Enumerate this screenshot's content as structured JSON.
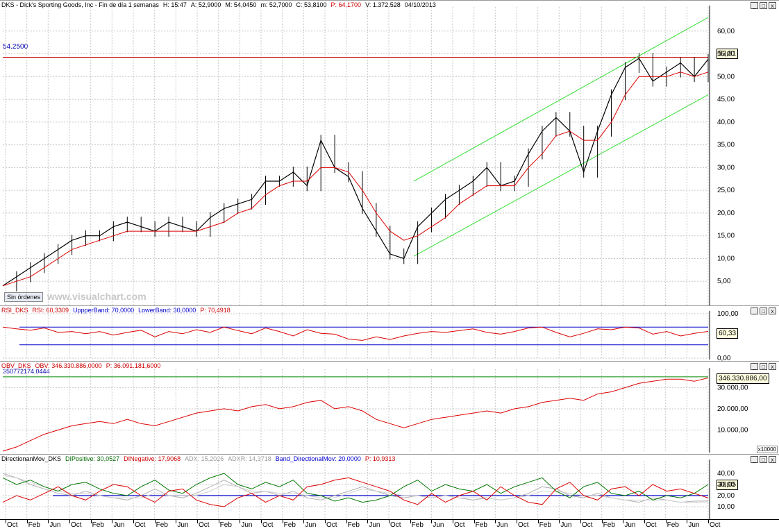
{
  "window_buttons": [
    "_",
    "□",
    "x"
  ],
  "price_panel": {
    "header": [
      {
        "text": "DKS - Dick's Sporting Goods, Inc - Fin de día 1 semanas",
        "color": "#000000"
      },
      {
        "text": "H: 15:47",
        "color": "#000000"
      },
      {
        "text": "A: 52,9000",
        "color": "#000000"
      },
      {
        "text": "M: 54,0450",
        "color": "#000000"
      },
      {
        "text": "m: 52,7000",
        "color": "#000000"
      },
      {
        "text": "C: 53,8100",
        "color": "#000000"
      },
      {
        "text": "P: 64,1700",
        "color": "#cc0000"
      },
      {
        "text": "V: 1.372.528",
        "color": "#000000"
      },
      {
        "text": "04/10/2013",
        "color": "#000000"
      }
    ],
    "resistance_label": "54.2500",
    "last_value": "53,81",
    "orders_button": "Sin órdenes",
    "watermark": "www.visualchart.com",
    "y_ticks": [
      "60,00",
      "55,00",
      "50,00",
      "45,00",
      "40,00",
      "35,00",
      "30,00",
      "25,00",
      "20,00",
      "15,00",
      "10,00",
      "5,00"
    ]
  },
  "rsi_panel": {
    "header": [
      {
        "text": "RSI_DKS",
        "color": "#cc0000"
      },
      {
        "text": "RSI: 60,3309",
        "color": "#cc0000"
      },
      {
        "text": "UppperBand: 70,0000",
        "color": "#0000cc"
      },
      {
        "text": "LowerBand: 30,0000",
        "color": "#0000cc"
      },
      {
        "text": "P: 70,4918",
        "color": "#cc0000"
      }
    ],
    "last_value": "60,33",
    "y_ticks": [
      "100,00",
      "0,00"
    ]
  },
  "obv_panel": {
    "header": [
      {
        "text": "OBV_DKS",
        "color": "#cc0000"
      },
      {
        "text": "OBV: 346.330.886,0000",
        "color": "#cc0000"
      },
      {
        "text": "P: 36.091.181,6000",
        "color": "#cc0000"
      }
    ],
    "sub_label": "350772174.0444",
    "last_value": "346.330.886,00",
    "y_ticks": [
      "30.000,00",
      "20.000,00",
      "10.000,00"
    ],
    "multiplier": "x10000"
  },
  "dmi_panel": {
    "header": [
      {
        "text": "DirectionanMov_DKS",
        "color": "#000000"
      },
      {
        "text": "DIPositive: 30,0527",
        "color": "#006600"
      },
      {
        "text": "DINegative: 17,9068",
        "color": "#cc0000"
      },
      {
        "text": "ADX: 15,2026",
        "color": "#999999"
      },
      {
        "text": "ADXR: 14,3718",
        "color": "#999999"
      },
      {
        "text": "Band_DirectionalMov: 20,0000",
        "color": "#0000cc"
      },
      {
        "text": "P: 10,9313",
        "color": "#cc0000"
      }
    ],
    "last_value": "30,05",
    "y_ticks": [
      "40,00",
      "30,00",
      "20,00",
      "10,00"
    ]
  },
  "x_axis_labels": [
    "Oct",
    "Feb",
    "Jun",
    "Oct",
    "Feb",
    "Jun",
    "Oct",
    "Feb",
    "Jun",
    "Oct",
    "Feb",
    "Jun",
    "Oct",
    "Feb",
    "Jun",
    "Oct",
    "Feb",
    "Jun",
    "Oct",
    "Feb",
    "Jun",
    "Oct",
    "Feb",
    "Jun",
    "Oct",
    "Feb",
    "Jun",
    "Oct",
    "Feb",
    "Jun",
    "Oct",
    "Feb",
    "Jun",
    "Oct"
  ],
  "chart_data": [
    {
      "type": "line",
      "title": "DKS - Dick's Sporting Goods, Inc - Fin de día 1 semanas",
      "ylim": [
        0,
        65
      ],
      "series": [
        {
          "values": [
            4,
            6,
            8,
            10,
            12,
            14,
            15,
            15,
            17,
            18,
            17,
            16,
            18,
            17,
            16,
            19,
            21,
            22,
            23,
            27,
            27,
            29,
            26,
            36,
            30,
            28,
            21,
            16,
            11,
            10,
            17,
            20,
            23,
            25,
            27,
            30,
            26,
            27,
            33,
            38,
            41,
            38,
            29,
            38,
            46,
            52,
            54,
            49,
            51,
            53,
            50,
            53.8
          ]
        },
        {
          "values": [
            4,
            5,
            6,
            8,
            10,
            12,
            13,
            14,
            15,
            16,
            16,
            16,
            16,
            16,
            16,
            17,
            18,
            20,
            21,
            24,
            26,
            27,
            27,
            30,
            30,
            29,
            25,
            20,
            16,
            14,
            15,
            17,
            19,
            22,
            24,
            26,
            26,
            26,
            30,
            33,
            37,
            38,
            36,
            36,
            40,
            46,
            50,
            50,
            50,
            51,
            50,
            51
          ]
        }
      ],
      "resistance": 54.25
    },
    {
      "type": "line",
      "title": "RSI_DKS",
      "ylim": [
        0,
        100
      ],
      "series": [
        {
          "name": "RSI_DKS",
          "values": [
            70,
            66,
            63,
            68,
            58,
            60,
            55,
            60,
            52,
            58,
            63,
            48,
            60,
            55,
            64,
            58,
            70,
            62,
            55,
            68,
            60,
            50,
            64,
            56,
            54,
            43,
            40,
            48,
            42,
            50,
            56,
            60,
            58,
            62,
            66,
            58,
            54,
            60,
            68,
            70,
            58,
            48,
            56,
            66,
            64,
            70,
            68,
            54,
            60,
            50,
            56,
            60.3
          ]
        }
      ],
      "bands": {
        "upper": 70,
        "lower": 30
      }
    },
    {
      "type": "line",
      "title": "OBV_DKS",
      "series": [
        {
          "name": "OBV_DKS",
          "values": [
            0,
            2,
            5,
            8,
            10,
            12,
            13,
            14,
            13,
            15,
            13,
            12,
            14,
            16,
            18,
            19,
            20,
            19,
            21,
            22,
            20,
            21,
            23,
            24,
            20,
            21,
            19,
            15,
            13,
            11,
            13,
            15,
            16,
            17,
            18,
            19,
            18,
            20,
            21,
            23,
            24,
            25,
            24,
            27,
            28,
            30,
            32,
            33,
            34,
            34,
            33,
            34.6
          ]
        }
      ],
      "level": 35.0772174
    },
    {
      "type": "line",
      "title": "DirectionanMov_DKS",
      "ylim": [
        0,
        50
      ],
      "series": [
        {
          "name": "DIPositive",
          "values": [
            36,
            30,
            34,
            28,
            24,
            30,
            32,
            26,
            22,
            20,
            28,
            34,
            25,
            22,
            30,
            36,
            40,
            30,
            26,
            32,
            28,
            34,
            22,
            20,
            15,
            18,
            14,
            16,
            20,
            28,
            34,
            24,
            30,
            26,
            24,
            30,
            22,
            28,
            32,
            36,
            24,
            18,
            28,
            32,
            22,
            20,
            24,
            16,
            20,
            18,
            22,
            30
          ]
        },
        {
          "name": "DINegative",
          "values": [
            14,
            20,
            16,
            22,
            28,
            20,
            16,
            24,
            30,
            28,
            20,
            14,
            24,
            26,
            16,
            12,
            10,
            18,
            22,
            14,
            20,
            16,
            28,
            30,
            34,
            36,
            32,
            28,
            24,
            16,
            12,
            22,
            14,
            20,
            24,
            16,
            28,
            20,
            14,
            12,
            26,
            32,
            20,
            16,
            26,
            28,
            20,
            30,
            24,
            26,
            22,
            17.9
          ]
        },
        {
          "name": "ADX",
          "values": [
            40,
            36,
            30,
            26,
            22,
            20,
            24,
            20,
            18,
            16,
            20,
            26,
            20,
            18,
            22,
            28,
            34,
            28,
            22,
            24,
            20,
            24,
            18,
            16,
            20,
            24,
            28,
            24,
            20,
            18,
            20,
            18,
            20,
            18,
            16,
            18,
            16,
            18,
            22,
            28,
            26,
            20,
            18,
            22,
            18,
            16,
            14,
            18,
            16,
            14,
            15,
            15.2
          ]
        },
        {
          "name": "ADXR",
          "values": [
            38,
            36,
            32,
            28,
            24,
            22,
            22,
            20,
            18,
            18,
            18,
            22,
            20,
            20,
            20,
            24,
            30,
            28,
            24,
            24,
            22,
            22,
            20,
            18,
            18,
            22,
            26,
            24,
            22,
            20,
            20,
            18,
            20,
            18,
            18,
            18,
            16,
            18,
            20,
            24,
            24,
            22,
            20,
            20,
            18,
            16,
            16,
            16,
            16,
            14,
            14,
            14.4
          ]
        }
      ],
      "band": 20
    }
  ]
}
